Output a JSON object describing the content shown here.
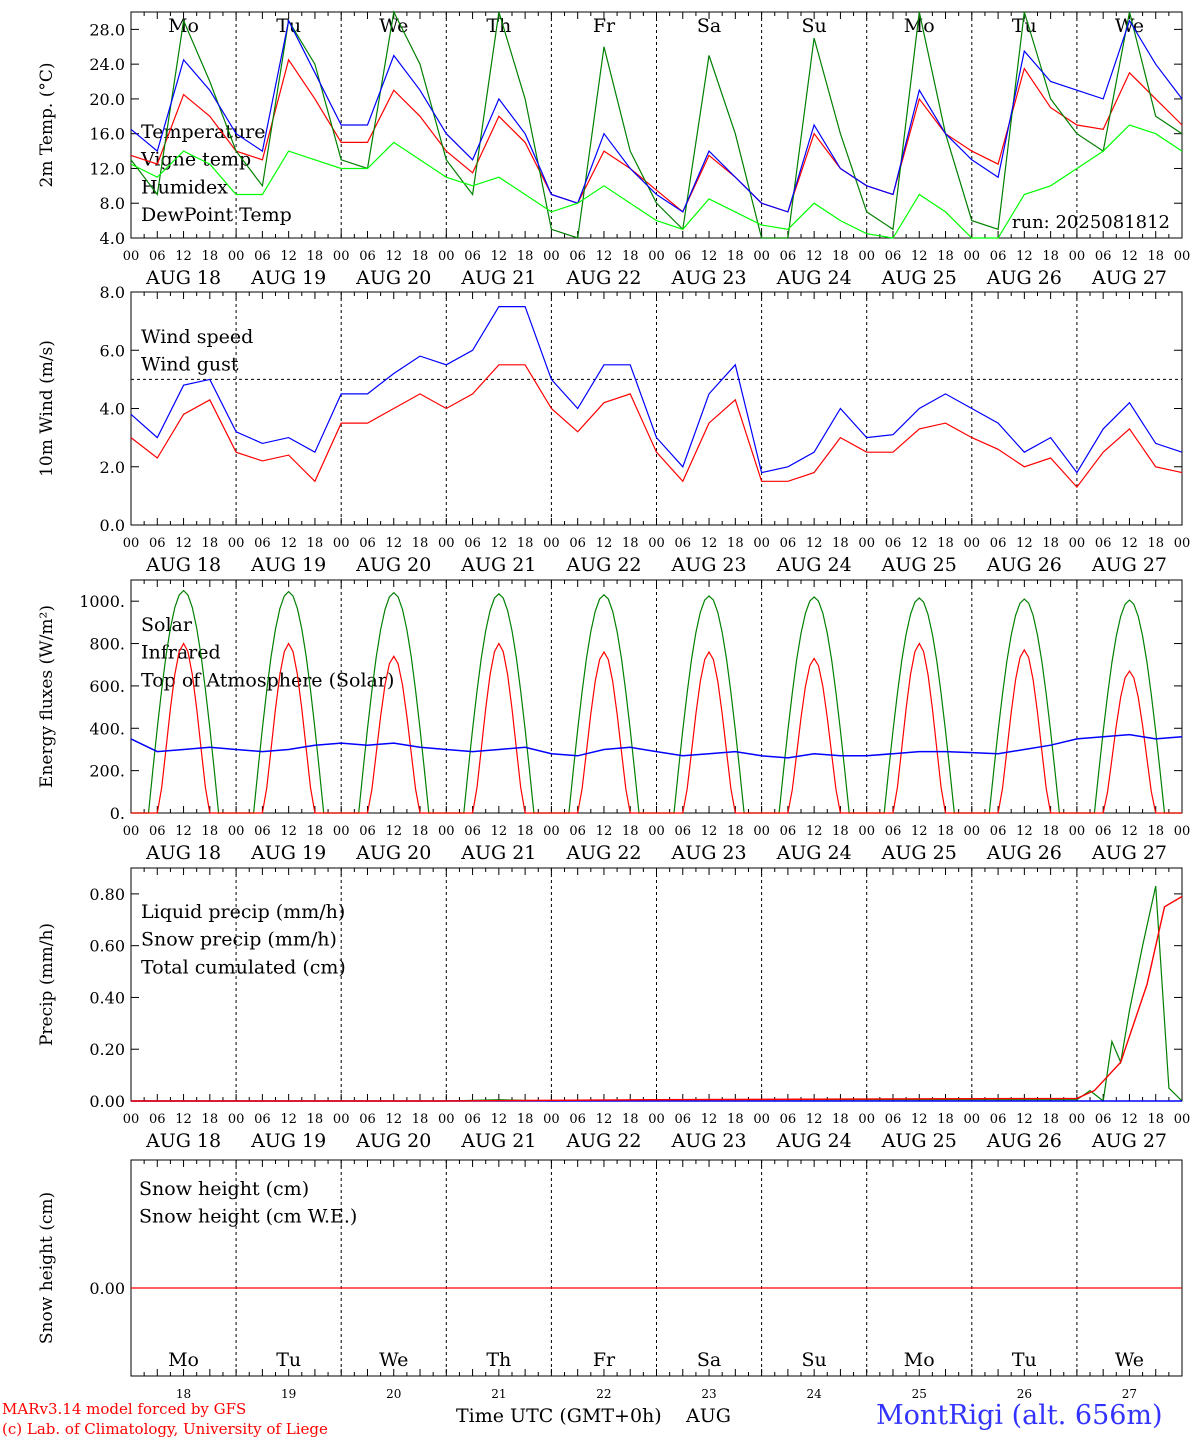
{
  "chart_data": [
    {
      "type": "line",
      "ylabel": "2m Temp. (°C)",
      "ylim": [
        4,
        30
      ],
      "yticks": [
        "28.0",
        "24.0",
        "20.0",
        "16.0",
        "12.0",
        "8.0",
        "4.0"
      ],
      "ytick_values": [
        28,
        24,
        20,
        16,
        12,
        8,
        4
      ],
      "run_label": "run: 2025081812",
      "legend": [
        {
          "name": "Temperature",
          "color": "#ff0000"
        },
        {
          "name": "Vigne temp",
          "color": "#008000"
        },
        {
          "name": "Humidex",
          "color": "#0000ff"
        },
        {
          "name": "DewPoint Temp",
          "color": "#00ff00"
        }
      ],
      "x": [
        0,
        6,
        12,
        18,
        24,
        30,
        36,
        42,
        48,
        54,
        60,
        66,
        72,
        78,
        84,
        90,
        96,
        102,
        108,
        114,
        120,
        126,
        132,
        138,
        144,
        150,
        156,
        162,
        168,
        174,
        180,
        186,
        192,
        198,
        204,
        210,
        216,
        222,
        228,
        234,
        240
      ],
      "series": [
        {
          "name": "Temperature",
          "color": "#ff0000",
          "values": [
            13.5,
            12.5,
            20.5,
            18,
            14,
            13,
            24.5,
            20,
            15,
            15,
            21,
            18,
            14,
            11.5,
            18,
            15,
            9,
            8,
            14,
            12,
            9.5,
            7,
            13.5,
            11,
            8,
            7,
            16,
            12,
            10,
            9,
            20,
            16,
            14,
            12.5,
            23.5,
            19,
            17,
            16.5,
            23,
            20,
            17
          ]
        },
        {
          "name": "Vigne temp",
          "color": "#008000",
          "values": [
            13,
            9,
            29,
            22,
            14,
            10,
            29,
            24,
            13,
            12,
            30,
            24,
            13,
            9,
            30,
            20,
            5,
            4,
            26,
            14,
            8,
            5,
            25,
            16,
            4,
            4,
            27,
            16,
            7,
            5,
            30,
            16,
            6,
            5,
            31,
            20,
            16,
            14,
            30,
            18,
            16
          ]
        },
        {
          "name": "Humidex",
          "color": "#0000ff",
          "values": [
            16.5,
            14,
            24.5,
            21,
            16,
            14,
            29,
            23,
            17,
            17,
            25,
            21,
            16,
            13,
            20,
            16,
            9,
            8,
            16,
            12,
            9,
            7,
            14,
            11,
            8,
            7,
            17,
            12,
            10,
            9,
            21,
            16,
            13,
            11,
            25.5,
            22,
            21,
            20,
            29,
            24,
            20
          ]
        },
        {
          "name": "DewPoint Temp",
          "color": "#00ff00",
          "values": [
            12.5,
            11,
            14,
            12.5,
            9,
            9,
            14,
            13,
            12,
            12,
            15,
            13,
            11,
            10,
            11,
            9,
            7,
            8,
            10,
            8,
            6,
            5,
            8.5,
            7,
            5.5,
            5,
            8,
            6,
            4.5,
            4,
            9,
            7,
            4,
            4,
            9,
            10,
            12,
            14,
            17,
            16,
            14
          ]
        }
      ],
      "day_labels": [
        "Mo",
        "Tu",
        "We",
        "Th",
        "Fr",
        "Sa",
        "Su",
        "Mo",
        "Tu",
        "We"
      ],
      "weekend_color": "#ff0000"
    },
    {
      "type": "line",
      "ylabel": "10m Wind (m/s)",
      "ylim": [
        0,
        8
      ],
      "yticks": [
        "8.0",
        "6.0",
        "4.0",
        "2.0",
        "0.0"
      ],
      "ytick_values": [
        8,
        6,
        4,
        2,
        0
      ],
      "reference_line": 5,
      "legend": [
        {
          "name": "Wind speed",
          "color": "#ff0000"
        },
        {
          "name": "Wind gust",
          "color": "#0000ff"
        }
      ],
      "x": [
        0,
        6,
        12,
        18,
        24,
        30,
        36,
        42,
        48,
        54,
        60,
        66,
        72,
        78,
        84,
        90,
        96,
        102,
        108,
        114,
        120,
        126,
        132,
        138,
        144,
        150,
        156,
        162,
        168,
        174,
        180,
        186,
        192,
        198,
        204,
        210,
        216,
        222,
        228,
        234,
        240
      ],
      "series": [
        {
          "name": "Wind speed",
          "color": "#ff0000",
          "values": [
            3,
            2.3,
            3.8,
            4.3,
            2.5,
            2.2,
            2.4,
            1.5,
            3.5,
            3.5,
            4,
            4.5,
            4,
            4.5,
            5.5,
            5.5,
            4,
            3.2,
            4.2,
            4.5,
            2.5,
            1.5,
            3.5,
            4.3,
            1.5,
            1.5,
            1.8,
            3,
            2.5,
            2.5,
            3.3,
            3.5,
            3,
            2.6,
            2,
            2.3,
            1.3,
            2.5,
            3.3,
            2,
            1.8
          ]
        },
        {
          "name": "Wind gust",
          "color": "#0000ff",
          "values": [
            3.8,
            3,
            4.8,
            5,
            3.2,
            2.8,
            3,
            2.5,
            4.5,
            4.5,
            5.2,
            5.8,
            5.5,
            6,
            7.5,
            7.5,
            5,
            4,
            5.5,
            5.5,
            3,
            2,
            4.5,
            5.5,
            1.8,
            2,
            2.5,
            4,
            3,
            3.1,
            4,
            4.5,
            4,
            3.5,
            2.5,
            3,
            1.8,
            3.3,
            4.2,
            2.8,
            2.5
          ]
        }
      ],
      "day_labels": []
    },
    {
      "type": "line",
      "ylabel": "Energy fluxes (W/m²)",
      "ylim": [
        0,
        1100
      ],
      "yticks": [
        "1000.",
        "800.",
        "600.",
        "400.",
        "200.",
        "0."
      ],
      "ytick_values": [
        1000,
        800,
        600,
        400,
        200,
        0
      ],
      "legend": [
        {
          "name": "Solar",
          "color": "#ff0000"
        },
        {
          "name": "Infrared",
          "color": "#0000ff"
        },
        {
          "name": "Top of Atmosphere (Solar)",
          "color": "#008000"
        }
      ],
      "toa_peak": [
        1050,
        1045,
        1040,
        1035,
        1030,
        1025,
        1020,
        1015,
        1010,
        1005
      ],
      "solar_peak": [
        800,
        800,
        740,
        800,
        760,
        760,
        730,
        800,
        770,
        670
      ],
      "infrared_values": [
        350,
        290,
        300,
        310,
        300,
        290,
        300,
        320,
        330,
        320,
        330,
        310,
        300,
        290,
        300,
        310,
        280,
        270,
        300,
        310,
        290,
        270,
        280,
        290,
        270,
        260,
        280,
        270,
        270,
        280,
        290,
        290,
        285,
        280,
        300,
        320,
        350,
        360,
        370,
        350,
        360
      ],
      "day_labels": []
    },
    {
      "type": "line",
      "ylabel": "Precip (mm/h)",
      "ylim": [
        0,
        0.9
      ],
      "yticks": [
        "0.80",
        "0.60",
        "0.40",
        "0.20",
        "0.00"
      ],
      "ytick_values": [
        0.8,
        0.6,
        0.4,
        0.2,
        0
      ],
      "legend": [
        {
          "name": "Liquid precip (mm/h)",
          "color": "#008000"
        },
        {
          "name": "Snow precip (mm/h)",
          "color": "#0000ff"
        },
        {
          "name": "Total cumulated (cm)",
          "color": "#ff0000"
        }
      ],
      "x_liquid": [
        0,
        72,
        84,
        96,
        120,
        216,
        219,
        222,
        224,
        226,
        228,
        231,
        234,
        237,
        240
      ],
      "liquid_values": [
        0,
        0,
        0.005,
        0,
        0.005,
        0.005,
        0.04,
        0,
        0.23,
        0.15,
        0.35,
        0.6,
        0.83,
        0.05,
        0
      ],
      "x_total": [
        0,
        72,
        120,
        216,
        220,
        226,
        232,
        236,
        240
      ],
      "total_values": [
        0,
        0,
        0.005,
        0.01,
        0.04,
        0.15,
        0.45,
        0.75,
        0.79
      ],
      "day_labels": []
    },
    {
      "type": "line",
      "ylabel": "Snow height (cm)",
      "yticks": [
        "0.00"
      ],
      "ytick_values": [
        0
      ],
      "legend": [
        {
          "name": "Snow height (cm)",
          "color": "#ff0000"
        },
        {
          "name": "Snow height (cm W.E.)",
          "color": "#0000ff"
        }
      ],
      "values": [
        0,
        0
      ],
      "day_labels": [
        "Mo",
        "Tu",
        "We",
        "Th",
        "Fr",
        "Sa",
        "Su",
        "Mo",
        "Tu",
        "We"
      ],
      "date_numbers": [
        "18",
        "19",
        "20",
        "21",
        "22",
        "23",
        "24",
        "25",
        "26",
        "27"
      ]
    }
  ],
  "x_axis": {
    "hour_ticks": [
      "00",
      "06",
      "12",
      "18"
    ],
    "end_tick": "00",
    "dates": [
      "AUG 18",
      "AUG 19",
      "AUG 20",
      "AUG 21",
      "AUG 22",
      "AUG 23",
      "AUG 24",
      "AUG 25",
      "AUG 26",
      "AUG 27"
    ],
    "weekend_days": [
      5,
      6
    ]
  },
  "footer": {
    "model": "MARv3.14 model forced by GFS",
    "lab": "(c) Lab. of Climatology, University of Liege",
    "time_label": "Time UTC (GMT+0h)",
    "month": "AUG",
    "station": "MontRigi (alt. 656m)",
    "left_color": "#ff0000",
    "station_color": "#3333ff"
  }
}
